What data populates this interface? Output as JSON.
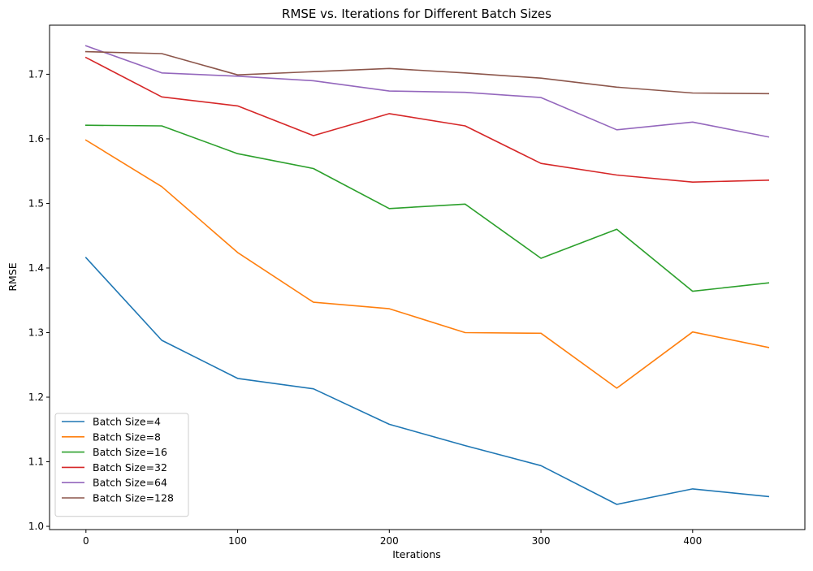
{
  "chart_data": {
    "type": "line",
    "title": "RMSE vs. Iterations for Different Batch Sizes",
    "xlabel": "Iterations",
    "ylabel": "RMSE",
    "x": [
      0,
      50,
      100,
      150,
      200,
      250,
      300,
      350,
      400,
      450
    ],
    "xlim": [
      -24,
      474
    ],
    "ylim": [
      0.995,
      1.776
    ],
    "xticks": [
      0,
      100,
      200,
      300,
      400
    ],
    "xtick_labels": [
      "0",
      "100",
      "200",
      "300",
      "400"
    ],
    "yticks": [
      1.0,
      1.1,
      1.2,
      1.3,
      1.4,
      1.5,
      1.6,
      1.7
    ],
    "ytick_labels": [
      "1.0",
      "1.1",
      "1.2",
      "1.3",
      "1.4",
      "1.5",
      "1.6",
      "1.7"
    ],
    "grid": false,
    "legend_position": "lower-left",
    "series": [
      {
        "name": "Batch Size=4",
        "color": "#1f77b4",
        "values": [
          1.416,
          1.288,
          1.229,
          1.213,
          1.158,
          1.125,
          1.094,
          1.034,
          1.058,
          1.046
        ]
      },
      {
        "name": "Batch Size=8",
        "color": "#ff7f0e",
        "values": [
          1.598,
          1.526,
          1.424,
          1.347,
          1.337,
          1.3,
          1.299,
          1.214,
          1.301,
          1.277
        ]
      },
      {
        "name": "Batch Size=16",
        "color": "#2ca02c",
        "values": [
          1.621,
          1.62,
          1.577,
          1.554,
          1.492,
          1.499,
          1.415,
          1.46,
          1.364,
          1.377
        ]
      },
      {
        "name": "Batch Size=32",
        "color": "#d62728",
        "values": [
          1.726,
          1.665,
          1.651,
          1.605,
          1.639,
          1.62,
          1.562,
          1.544,
          1.533,
          1.536
        ]
      },
      {
        "name": "Batch Size=64",
        "color": "#9467bd",
        "values": [
          1.744,
          1.702,
          1.697,
          1.69,
          1.674,
          1.672,
          1.664,
          1.614,
          1.626,
          1.603
        ]
      },
      {
        "name": "Batch Size=128",
        "color": "#8c564b",
        "values": [
          1.735,
          1.732,
          1.699,
          1.704,
          1.709,
          1.702,
          1.694,
          1.68,
          1.671,
          1.67
        ]
      }
    ]
  }
}
